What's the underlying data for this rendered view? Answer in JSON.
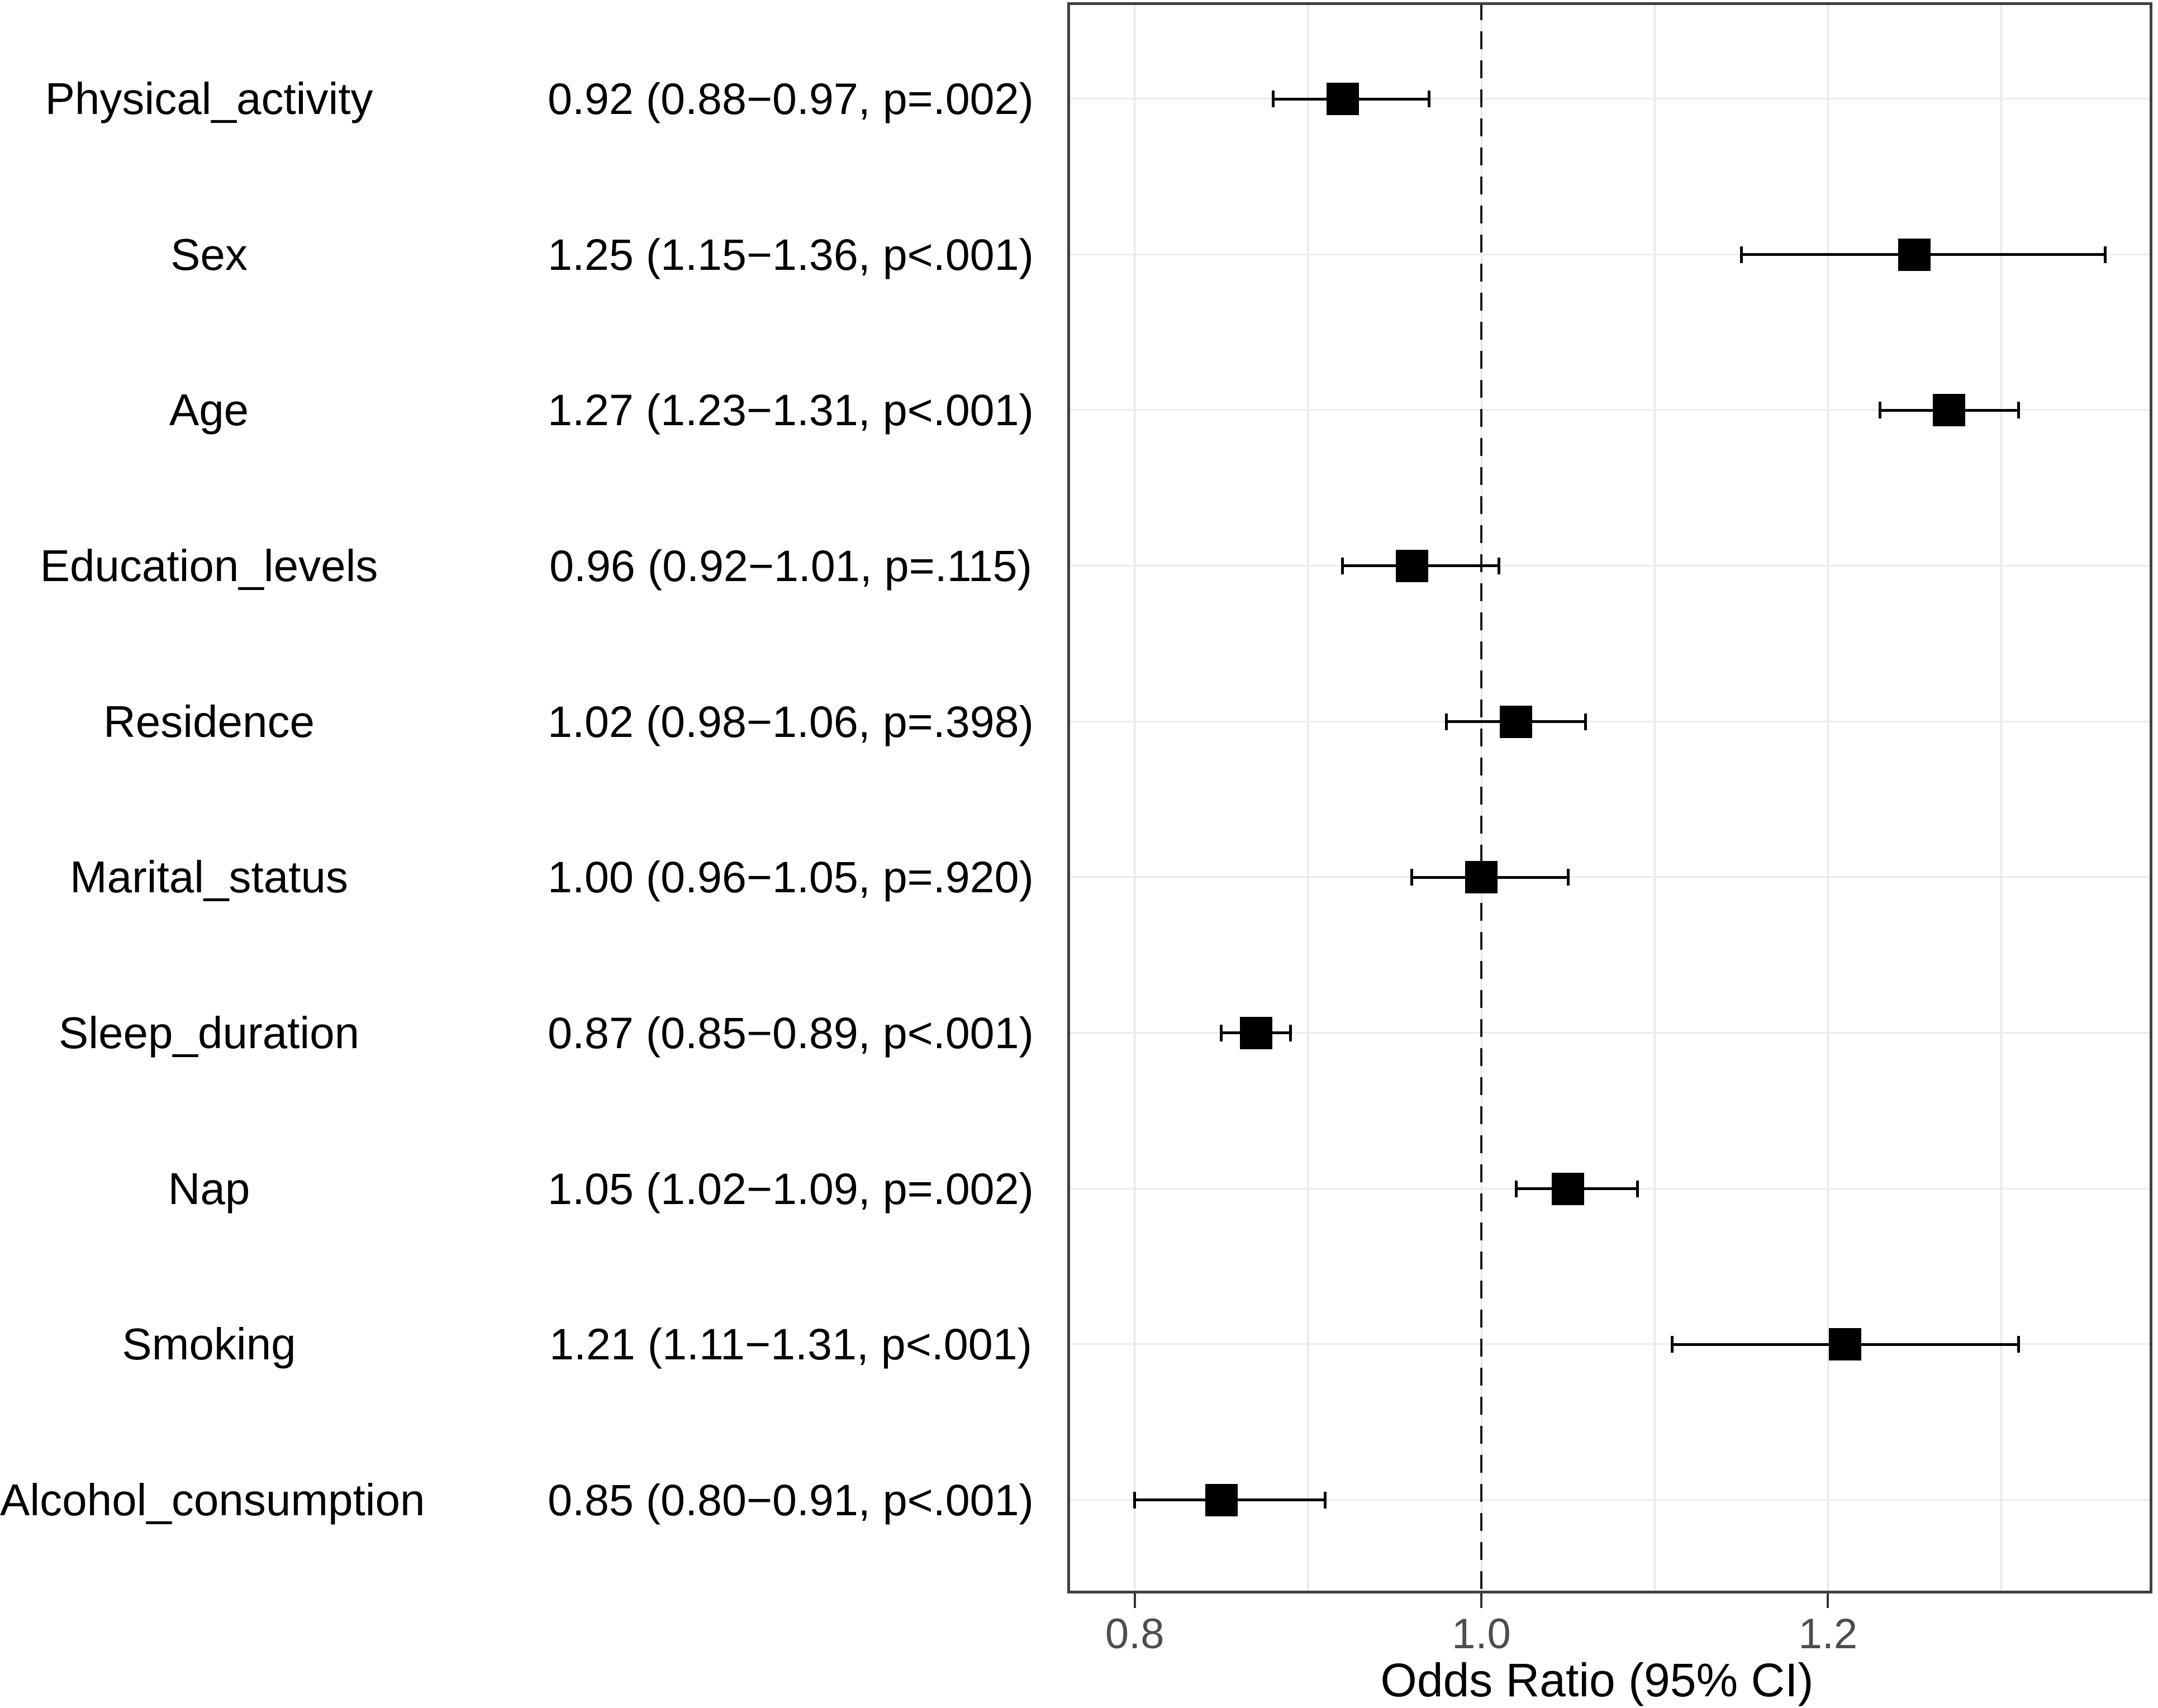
{
  "chart_data": {
    "type": "scatter",
    "subtype": "forest_plot",
    "title": "",
    "x_axis": {
      "label": "Odds Ratio (95% CI)",
      "ticks": [
        0.8,
        1.0,
        1.2
      ],
      "tick_labels": [
        "0.8",
        "1.0",
        "1.2"
      ],
      "gridlines": [
        0.8,
        0.9,
        1.0,
        1.1,
        1.2,
        1.3
      ],
      "range": [
        0.761,
        1.387
      ],
      "reference_line": 1.0
    },
    "y_axis": {
      "categories_top_to_bottom": [
        "Physical_activity",
        "Sex",
        "Age",
        "Education_levels",
        "Residence",
        "Marital_status",
        "Sleep_duration",
        "Nap",
        "Smoking",
        "Alcohol_consumption"
      ]
    },
    "rows": [
      {
        "label": "Physical_activity",
        "text": "0.92 (0.88−0.97, p=.002)",
        "or": 0.92,
        "lo": 0.88,
        "hi": 0.97,
        "p": ".002"
      },
      {
        "label": "Sex",
        "text": "1.25 (1.15−1.36, p<.001)",
        "or": 1.25,
        "lo": 1.15,
        "hi": 1.36,
        "p": "<.001"
      },
      {
        "label": "Age",
        "text": "1.27 (1.23−1.31, p<.001)",
        "or": 1.27,
        "lo": 1.23,
        "hi": 1.31,
        "p": "<.001"
      },
      {
        "label": "Education_levels",
        "text": "0.96 (0.92−1.01, p=.115)",
        "or": 0.96,
        "lo": 0.92,
        "hi": 1.01,
        "p": ".115"
      },
      {
        "label": "Residence",
        "text": "1.02 (0.98−1.06, p=.398)",
        "or": 1.02,
        "lo": 0.98,
        "hi": 1.06,
        "p": ".398"
      },
      {
        "label": "Marital_status",
        "text": "1.00 (0.96−1.05, p=.920)",
        "or": 1.0,
        "lo": 0.96,
        "hi": 1.05,
        "p": ".920"
      },
      {
        "label": "Sleep_duration",
        "text": "0.87 (0.85−0.89, p<.001)",
        "or": 0.87,
        "lo": 0.85,
        "hi": 0.89,
        "p": "<.001"
      },
      {
        "label": "Nap",
        "text": "1.05 (1.02−1.09, p=.002)",
        "or": 1.05,
        "lo": 1.02,
        "hi": 1.09,
        "p": ".002"
      },
      {
        "label": "Smoking",
        "text": "1.21 (1.11−1.31, p<.001)",
        "or": 1.21,
        "lo": 1.11,
        "hi": 1.31,
        "p": "<.001"
      },
      {
        "label": "Alcohol_consumption",
        "text": "0.85 (0.80−0.91, p<.001)",
        "or": 0.85,
        "lo": 0.8,
        "hi": 0.91,
        "p": "<.001"
      }
    ],
    "style": {
      "marker_color": "#000000",
      "line_color": "#000000",
      "vertical_gridline_color": "#e7e7e7",
      "horizontal_gridline_color": "#ececec",
      "panel_border_color": "#404040",
      "tick_color": "#333333",
      "tick_label_color": "#4d4d4d",
      "axis_title_color": "#000000",
      "reference_line_color": "#1a1a1a",
      "background": "#ffffff"
    },
    "legend": null,
    "grid": true
  }
}
